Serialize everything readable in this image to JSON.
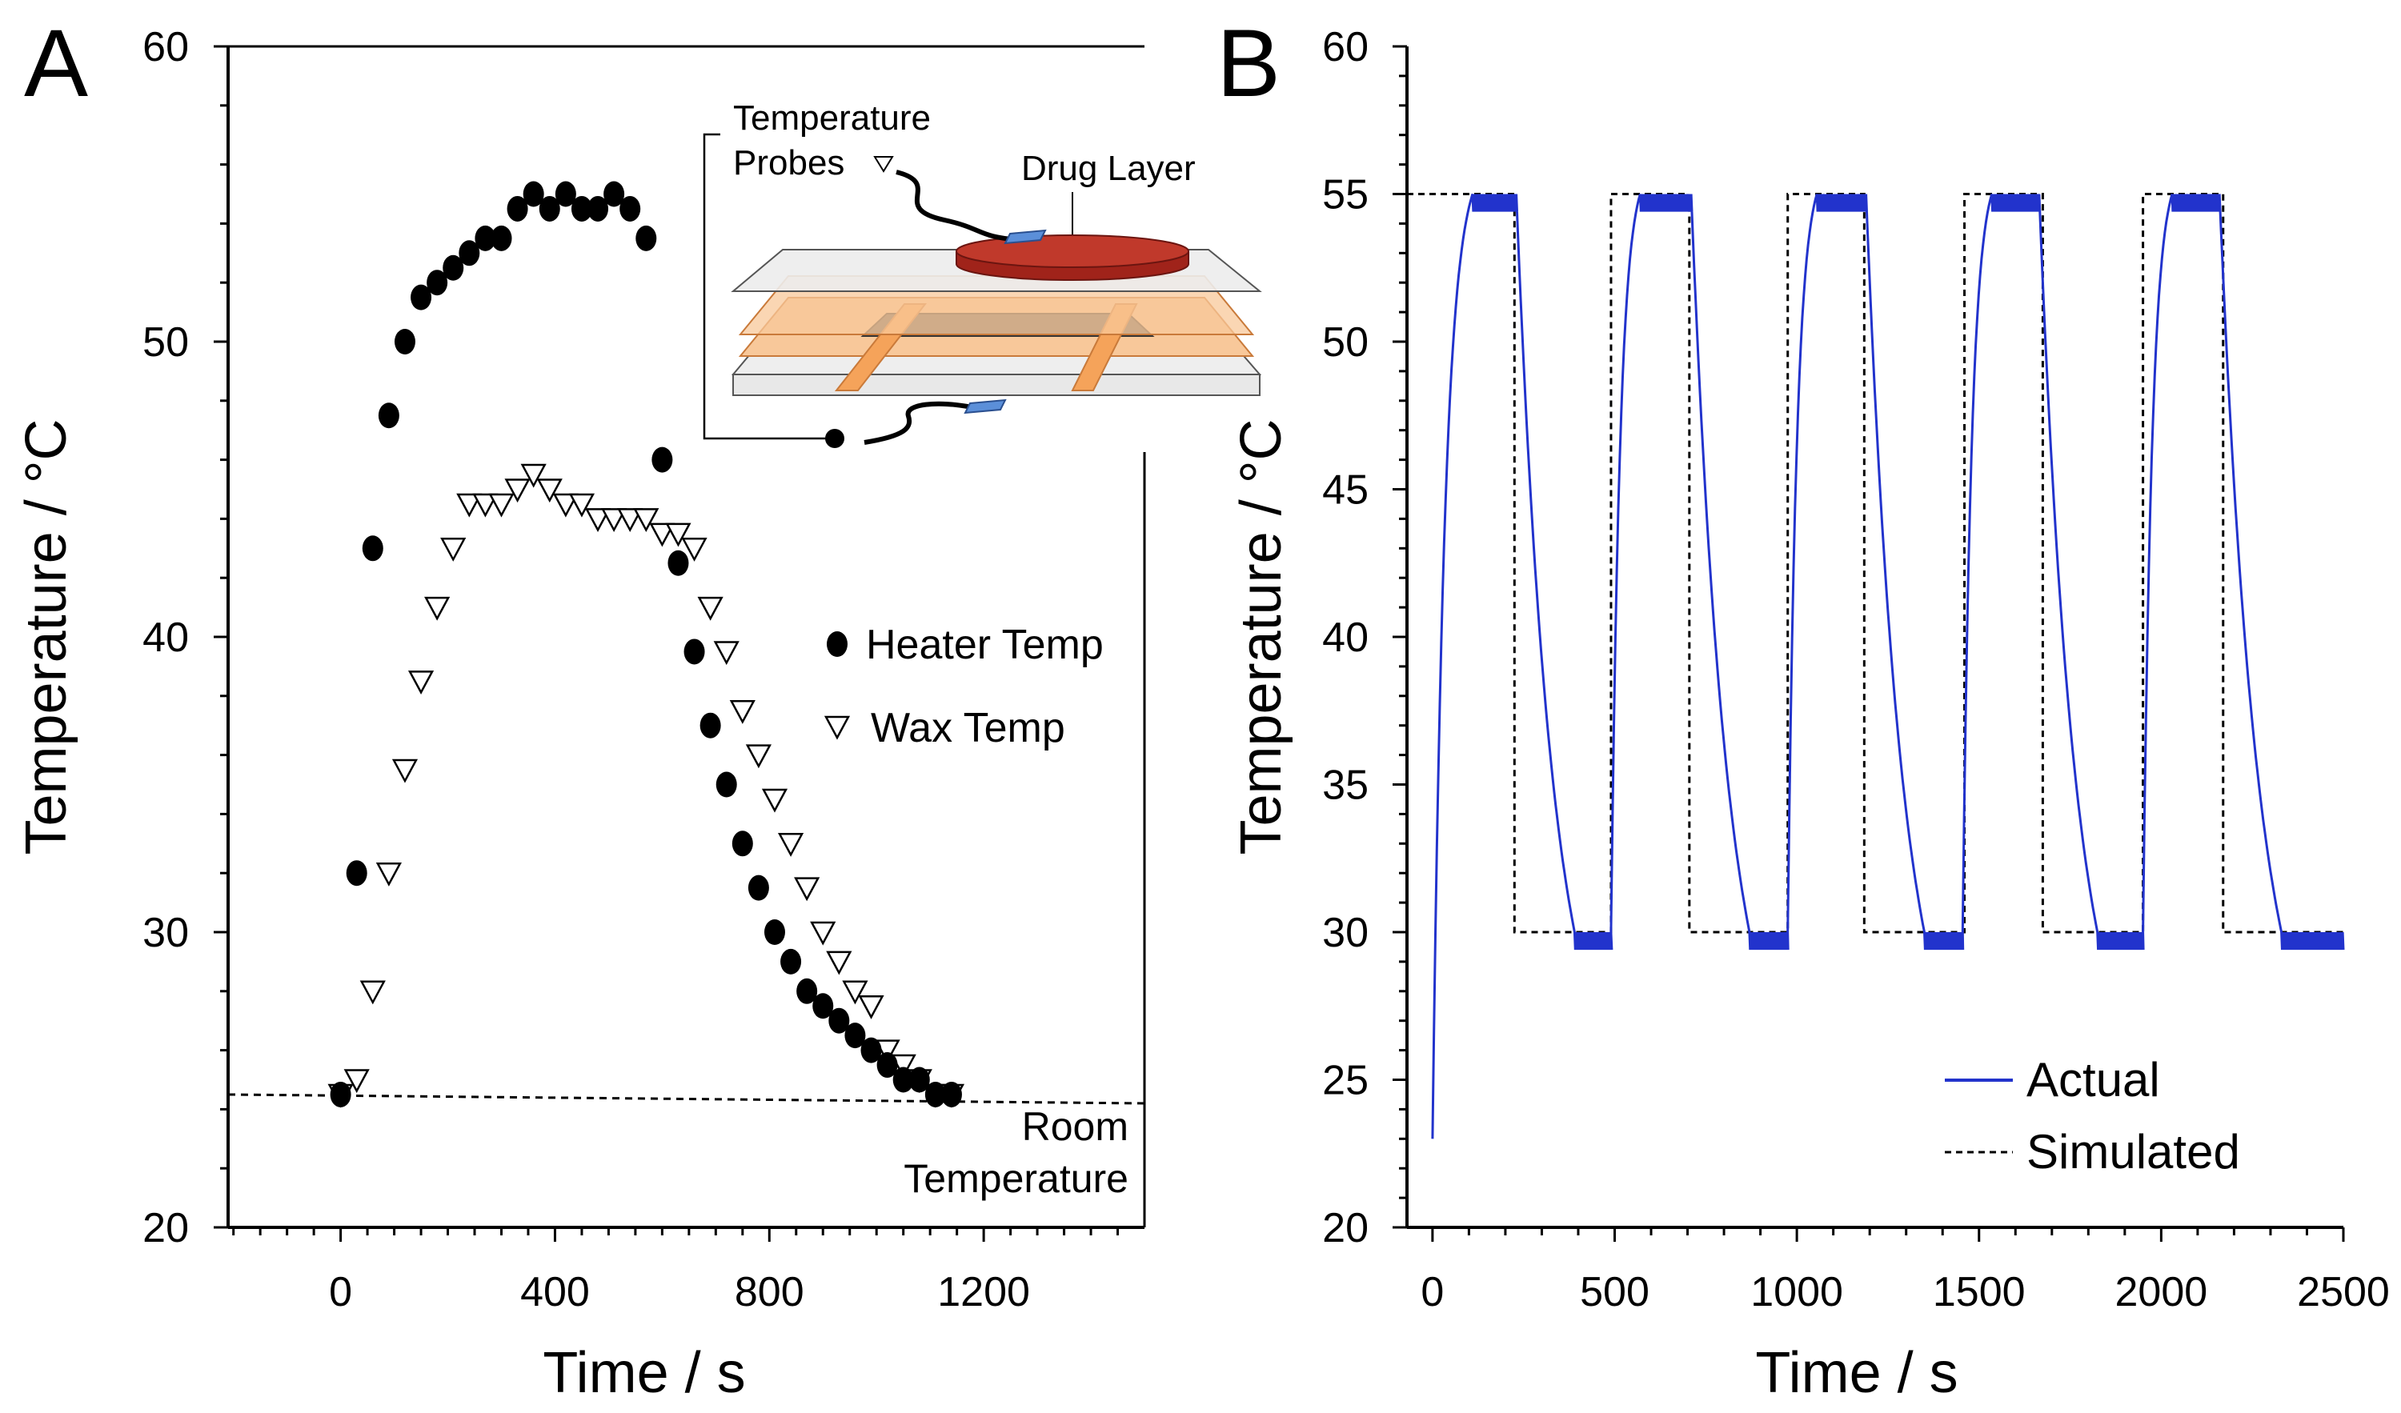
{
  "chart_data": [
    {
      "panel": "A",
      "type": "scatter",
      "xlabel": "Time / s",
      "ylabel": "Temperature / °C",
      "xlim": [
        -210,
        1500
      ],
      "ylim": [
        20,
        60
      ],
      "xticks": [
        0,
        400,
        800,
        1200
      ],
      "yticks": [
        20,
        30,
        40,
        50,
        60
      ],
      "series": [
        {
          "name": "Heater Temp",
          "marker": "filled-circle",
          "color": "#000000",
          "x": [
            0,
            30,
            60,
            90,
            120,
            150,
            180,
            210,
            240,
            270,
            300,
            330,
            360,
            390,
            420,
            450,
            480,
            510,
            540,
            570,
            600,
            630,
            660,
            690,
            720,
            750,
            780,
            810,
            840,
            870,
            900,
            930,
            960,
            990,
            1020,
            1050,
            1080,
            1110,
            1140
          ],
          "y": [
            24.5,
            32,
            43,
            47.5,
            50,
            51.5,
            52,
            52.5,
            53,
            53.5,
            53.5,
            54.5,
            55,
            54.5,
            55,
            54.5,
            54.5,
            55,
            54.5,
            53.5,
            46,
            42.5,
            39.5,
            37,
            35,
            33,
            31.5,
            30,
            29,
            28,
            27.5,
            27,
            26.5,
            26,
            25.5,
            25,
            25,
            24.5,
            24.5
          ]
        },
        {
          "name": "Wax Temp",
          "marker": "open-triangle-down",
          "color": "#000000",
          "x": [
            0,
            30,
            60,
            90,
            120,
            150,
            180,
            210,
            240,
            270,
            300,
            330,
            360,
            390,
            420,
            450,
            480,
            510,
            540,
            570,
            600,
            630,
            660,
            690,
            720,
            750,
            780,
            810,
            840,
            870,
            900,
            930,
            960,
            990,
            1020,
            1050,
            1080,
            1110,
            1140
          ],
          "y": [
            24.5,
            25,
            28,
            32,
            35.5,
            38.5,
            41,
            43,
            44.5,
            44.5,
            44.5,
            45,
            45.5,
            45,
            44.5,
            44.5,
            44,
            44,
            44,
            44,
            43.5,
            43.5,
            43,
            41,
            39.5,
            37.5,
            36,
            34.5,
            33,
            31.5,
            30,
            29,
            28,
            27.5,
            26,
            25.5,
            25,
            24.5,
            24.5
          ]
        }
      ],
      "room_temperature": {
        "x": [
          -210,
          1500
        ],
        "y": [
          24.5,
          24.2
        ]
      },
      "legend_position": "right",
      "annotations": [
        "Room",
        "Temperature"
      ],
      "inset": {
        "labels": [
          "Temperature",
          "Probes",
          "Drug Layer"
        ],
        "colors": {
          "drug": "#c0392b",
          "probe": "#5b8fd9",
          "wax": "#f5a35a",
          "heater": "#5a5a5a",
          "plate": "#e6e6e6"
        }
      }
    },
    {
      "panel": "B",
      "type": "line",
      "xlabel": "Time / s",
      "ylabel": "Temperature / °C",
      "xlim": [
        -70,
        2500
      ],
      "ylim": [
        20,
        60
      ],
      "xticks": [
        0,
        500,
        1000,
        1500,
        2000,
        2500
      ],
      "yticks": [
        20,
        25,
        30,
        35,
        40,
        45,
        50,
        55,
        60
      ],
      "series": [
        {
          "name": "Actual",
          "color": "#2233cc",
          "style": "solid",
          "cycles": [
            {
              "up_start": 0,
              "reach_high": 110,
              "high_end": 230,
              "reach_low": 390,
              "low_end": 490
            },
            {
              "up_start": 490,
              "reach_high": 570,
              "high_end": 710,
              "reach_low": 870,
              "low_end": 975
            },
            {
              "up_start": 975,
              "reach_high": 1055,
              "high_end": 1190,
              "reach_low": 1350,
              "low_end": 1455
            },
            {
              "up_start": 1455,
              "reach_high": 1535,
              "high_end": 1665,
              "reach_low": 1825,
              "low_end": 1950
            },
            {
              "up_start": 1950,
              "reach_high": 2030,
              "high_end": 2160,
              "reach_low": 2330,
              "low_end": 2500
            }
          ],
          "start_value": 23,
          "high_value": 55,
          "low_value": 30
        },
        {
          "name": "Simulated",
          "color": "#000000",
          "style": "dashed",
          "x": [
            -70,
            225,
            225,
            490,
            490,
            705,
            705,
            975,
            975,
            1185,
            1185,
            1460,
            1460,
            1675,
            1675,
            1950,
            1950,
            2170,
            2170,
            2500
          ],
          "y": [
            55,
            55,
            30,
            30,
            55,
            55,
            30,
            30,
            55,
            55,
            30,
            30,
            55,
            55,
            30,
            30,
            55,
            55,
            30,
            30
          ]
        }
      ],
      "legend_position": "bottom-right"
    }
  ]
}
